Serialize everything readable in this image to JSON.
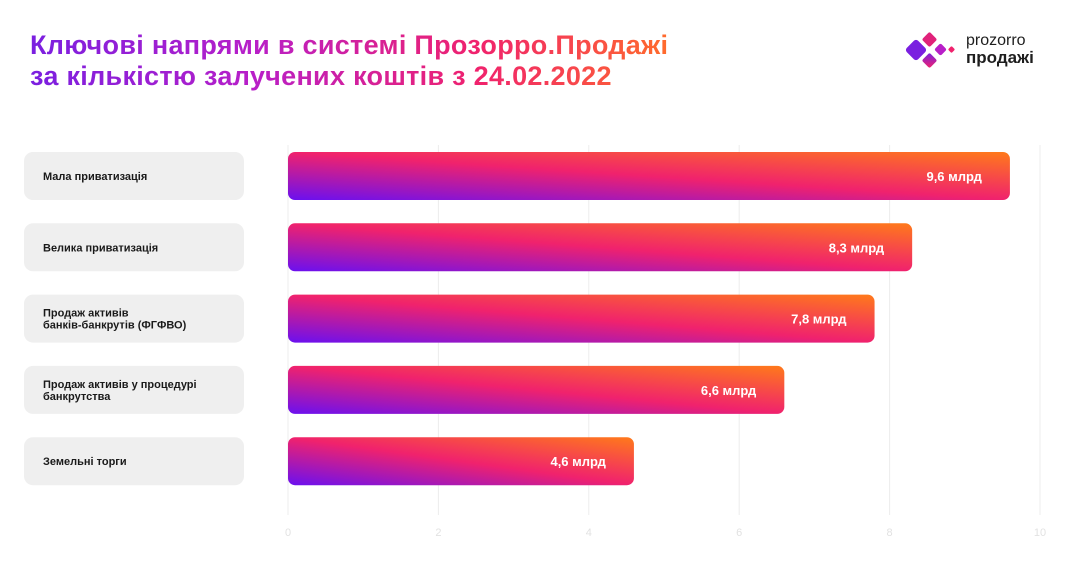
{
  "header": {
    "title_line1": "Ключові напрями в системі Прозорро.Продажі",
    "title_line2": "за кількістю залучених коштів з 24.02.2022"
  },
  "logo": {
    "line1": "prozorro",
    "line2": "продажі",
    "icon": "diamond-dots-logo-icon"
  },
  "colors": {
    "gradient_start": "#6a10f0",
    "gradient_mid": "#f0226d",
    "gradient_end": "#ff7a1a",
    "label_box": "#efefef",
    "grid": "#ececec"
  },
  "chart_data": {
    "type": "bar",
    "orientation": "horizontal",
    "categories": [
      [
        "Мала приватизація"
      ],
      [
        "Велика приватизація"
      ],
      [
        "Продаж активів",
        "банків-банкрутів (ФГФВО)"
      ],
      [
        "Продаж активів у процедурі",
        "банкрутства"
      ],
      [
        "Земельні торги"
      ]
    ],
    "values": [
      9.6,
      8.3,
      7.8,
      6.6,
      4.6
    ],
    "value_labels": [
      "9,6 млрд",
      "8,3 млрд",
      "7,8 млрд",
      "6,6 млрд",
      "4,6 млрд"
    ],
    "xlim": [
      0,
      10
    ],
    "xticks": [
      0,
      2,
      4,
      6,
      8,
      10
    ],
    "grid": true
  }
}
